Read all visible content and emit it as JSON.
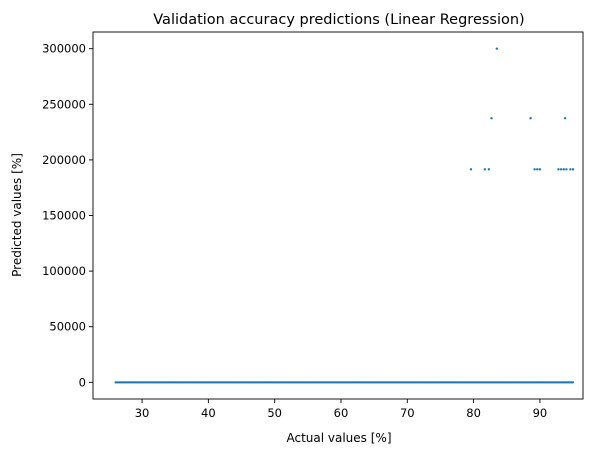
{
  "chart_data": {
    "type": "scatter",
    "title": "Validation accuracy predictions (Linear Regression)",
    "xlabel": "Actual values [%]",
    "ylabel": "Predicted values [%]",
    "xlim": [
      22.6,
      96.5
    ],
    "ylim": [
      -15000,
      315000
    ],
    "xticks": [
      30,
      40,
      50,
      60,
      70,
      80,
      90
    ],
    "yticks": [
      0,
      50000,
      100000,
      150000,
      200000,
      250000,
      300000
    ],
    "grid": false,
    "marker_color": "#1f77b4",
    "series": [
      {
        "points_y0_x_range": [
          26,
          95
        ],
        "outliers": [
          {
            "x": 83.5,
            "y": 300000
          },
          {
            "x": 82.7,
            "y": 237500
          },
          {
            "x": 88.6,
            "y": 237500
          },
          {
            "x": 93.8,
            "y": 237500
          },
          {
            "x": 79.6,
            "y": 191500
          },
          {
            "x": 81.7,
            "y": 191500
          },
          {
            "x": 82.3,
            "y": 191500
          },
          {
            "x": 89.2,
            "y": 191500
          },
          {
            "x": 89.6,
            "y": 191500
          },
          {
            "x": 90.0,
            "y": 191500
          },
          {
            "x": 92.8,
            "y": 191500
          },
          {
            "x": 93.2,
            "y": 191500
          },
          {
            "x": 93.6,
            "y": 191500
          },
          {
            "x": 94.0,
            "y": 191500
          },
          {
            "x": 94.6,
            "y": 191500
          },
          {
            "x": 95.0,
            "y": 191500
          }
        ]
      }
    ]
  }
}
